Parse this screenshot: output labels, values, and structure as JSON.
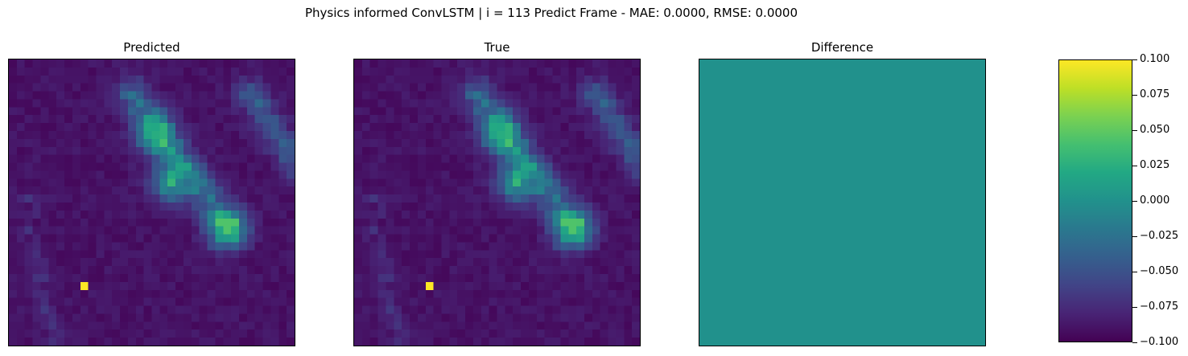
{
  "figure": {
    "suptitle": "Physics informed ConvLSTM | i = 113 Predict Frame - MAE: 0.0000, RMSE: 0.0000",
    "panels": [
      {
        "title": "Predicted"
      },
      {
        "title": "True"
      },
      {
        "title": "Difference"
      }
    ],
    "colorbar": {
      "ticks": [
        "0.100",
        "0.075",
        "0.050",
        "0.025",
        "0.000",
        "−0.025",
        "−0.050",
        "−0.075",
        "−0.100"
      ]
    }
  },
  "colors": {
    "viridis_low": "#440154",
    "viridis_mid": "#21918c",
    "viridis_high": "#fde725",
    "difference_fill": "#21918c"
  },
  "chart_data": [
    {
      "type": "heatmap",
      "title": "Predicted",
      "grid_size": [
        36,
        36
      ],
      "colormap": "viridis",
      "value_range_relative": [
        0,
        1
      ],
      "axes_visible": false,
      "features": [
        {
          "kind": "band",
          "from": [
            15,
            4
          ],
          "to": [
            27,
            20
          ],
          "value": 0.35
        },
        {
          "kind": "band",
          "from": [
            30,
            4
          ],
          "to": [
            36,
            13
          ],
          "value": 0.25
        },
        {
          "kind": "blob",
          "center": [
            27,
            21
          ],
          "value": 0.55
        },
        {
          "kind": "blob",
          "center": [
            20,
            15
          ],
          "value": 0.5
        },
        {
          "kind": "blob",
          "center": [
            18,
            9
          ],
          "value": 0.45
        },
        {
          "kind": "hotspot",
          "cell": [
            9,
            28
          ],
          "value": 1.0
        }
      ]
    },
    {
      "type": "heatmap",
      "title": "True",
      "grid_size": [
        36,
        36
      ],
      "colormap": "viridis",
      "value_range_relative": [
        0,
        1
      ],
      "axes_visible": false,
      "features": [
        {
          "kind": "band",
          "from": [
            15,
            4
          ],
          "to": [
            27,
            20
          ],
          "value": 0.35
        },
        {
          "kind": "band",
          "from": [
            30,
            4
          ],
          "to": [
            36,
            13
          ],
          "value": 0.25
        },
        {
          "kind": "blob",
          "center": [
            27,
            21
          ],
          "value": 0.55
        },
        {
          "kind": "blob",
          "center": [
            20,
            15
          ],
          "value": 0.5
        },
        {
          "kind": "blob",
          "center": [
            18,
            9
          ],
          "value": 0.45
        },
        {
          "kind": "hotspot",
          "cell": [
            9,
            28
          ],
          "value": 1.0
        }
      ]
    },
    {
      "type": "heatmap",
      "title": "Difference",
      "grid_size": [
        36,
        36
      ],
      "colormap": "viridis",
      "uniform_value": 0.0,
      "axes_visible": false
    },
    {
      "type": "colorbar",
      "colormap": "viridis",
      "ylim": [
        -0.1,
        0.1
      ],
      "ticks": [
        0.1,
        0.075,
        0.05,
        0.025,
        0.0,
        -0.025,
        -0.05,
        -0.075,
        -0.1
      ]
    }
  ]
}
